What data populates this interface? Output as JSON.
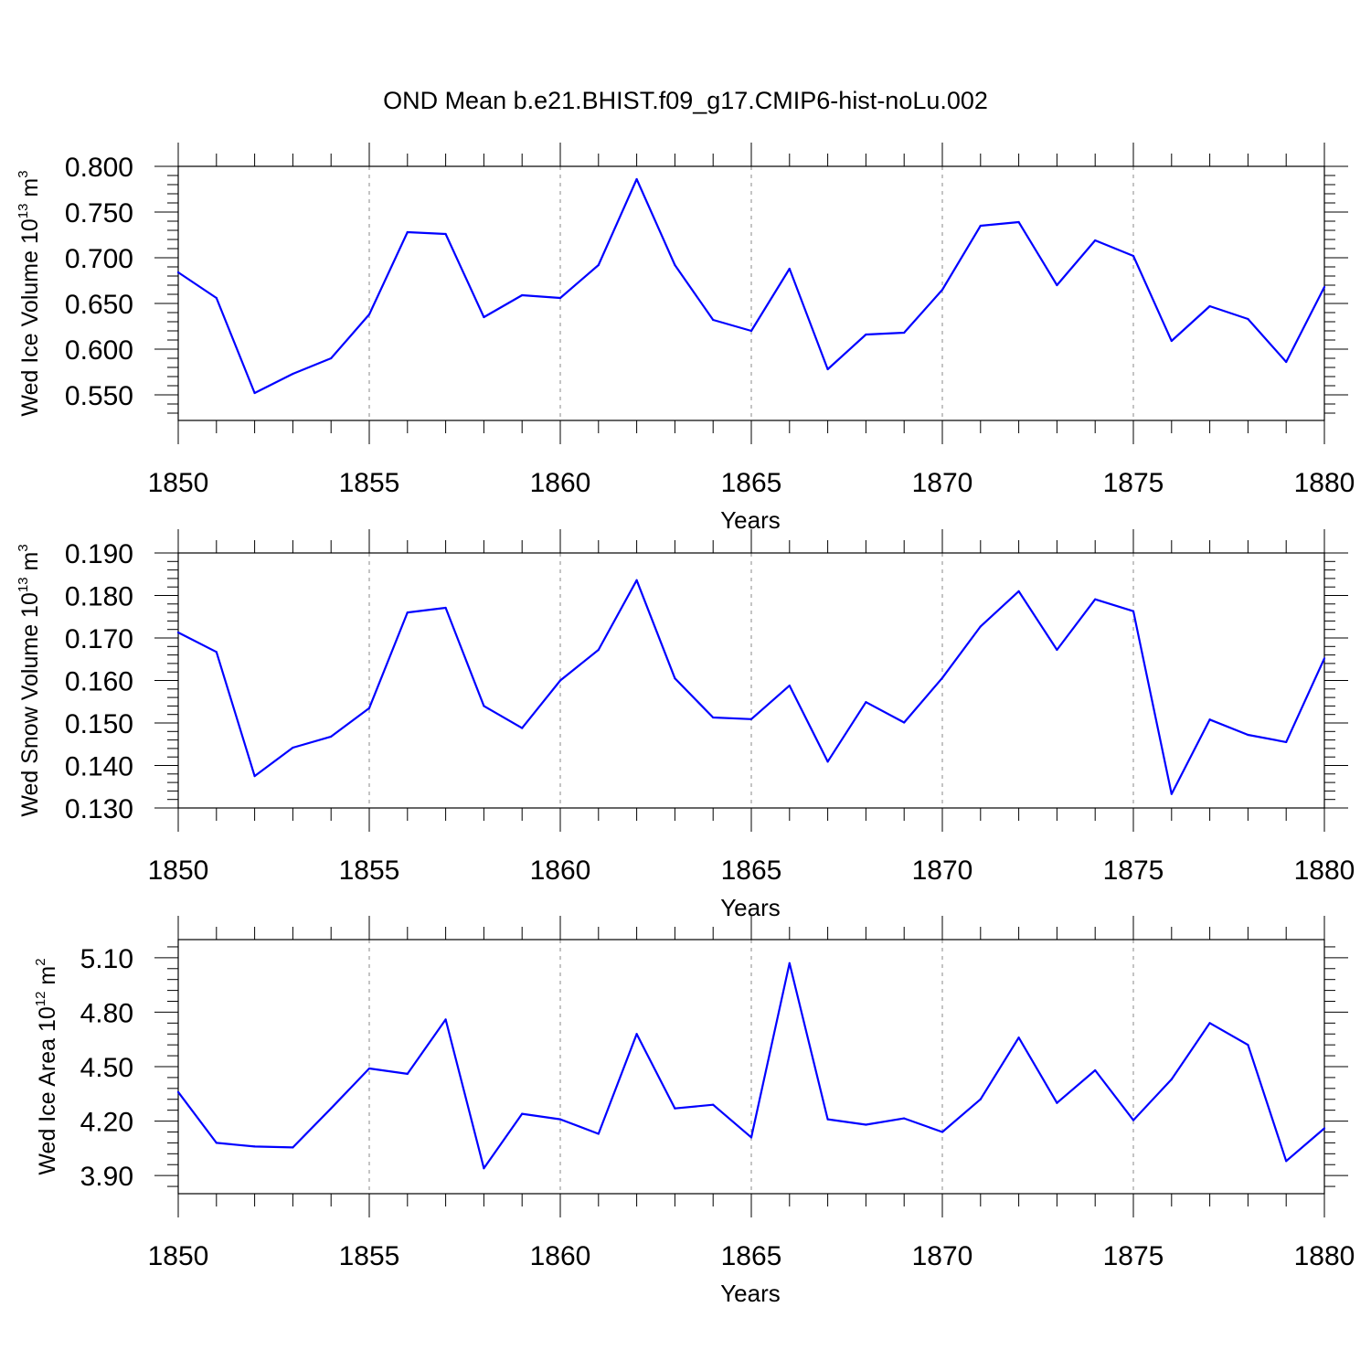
{
  "figure": {
    "title": "OND Mean b.e21.BHIST.f09_g17.CMIP6-hist-noLu.002"
  },
  "colors": {
    "line": "#0000ff",
    "grid": "#888888",
    "axis": "#000000"
  },
  "chart_data": [
    {
      "type": "line",
      "title": "OND Mean b.e21.BHIST.f09_g17.CMIP6-hist-noLu.002",
      "xlabel": "Years",
      "ylabel": "Wed Ice Volume 10^13 m^3",
      "ylabel_parts": {
        "text": "Wed Ice Volume 10",
        "exp": "13",
        "unit": " m",
        "unit_exp": "3"
      },
      "xlim": [
        1850,
        1880
      ],
      "ylim": [
        0.522,
        0.8
      ],
      "xticks": [
        1850,
        1855,
        1860,
        1865,
        1870,
        1875,
        1880
      ],
      "xtick_labels": [
        "1850",
        "1855",
        "1860",
        "1865",
        "1870",
        "1875",
        "1880"
      ],
      "yticks": [
        0.55,
        0.6,
        0.65,
        0.7,
        0.75,
        0.8
      ],
      "ytick_labels": [
        "0.550",
        "0.600",
        "0.650",
        "0.700",
        "0.750",
        "0.800"
      ],
      "grid": "x-dashed",
      "series": [
        {
          "name": "Wed Ice Volume",
          "x": [
            1850,
            1851,
            1852,
            1853,
            1854,
            1855,
            1856,
            1857,
            1858,
            1859,
            1860,
            1861,
            1862,
            1863,
            1864,
            1865,
            1866,
            1867,
            1868,
            1869,
            1870,
            1871,
            1872,
            1873,
            1874,
            1875,
            1876,
            1877,
            1878,
            1879,
            1880
          ],
          "values": [
            0.684,
            0.656,
            0.552,
            0.573,
            0.59,
            0.638,
            0.728,
            0.726,
            0.635,
            0.659,
            0.656,
            0.692,
            0.786,
            0.692,
            0.632,
            0.62,
            0.688,
            0.578,
            0.616,
            0.618,
            0.665,
            0.735,
            0.739,
            0.67,
            0.719,
            0.702,
            0.609,
            0.647,
            0.633,
            0.586,
            0.668
          ]
        }
      ]
    },
    {
      "type": "line",
      "xlabel": "Years",
      "ylabel": "Wed Snow Volume 10^13 m^3",
      "ylabel_parts": {
        "text": "Wed Snow Volume 10",
        "exp": "13",
        "unit": " m",
        "unit_exp": "3"
      },
      "xlim": [
        1850,
        1880
      ],
      "ylim": [
        0.13,
        0.19
      ],
      "xticks": [
        1850,
        1855,
        1860,
        1865,
        1870,
        1875,
        1880
      ],
      "xtick_labels": [
        "1850",
        "1855",
        "1860",
        "1865",
        "1870",
        "1875",
        "1880"
      ],
      "yticks": [
        0.13,
        0.14,
        0.15,
        0.16,
        0.17,
        0.18,
        0.19
      ],
      "ytick_labels": [
        "0.130",
        "0.140",
        "0.150",
        "0.160",
        "0.170",
        "0.180",
        "0.190"
      ],
      "grid": "x-dashed",
      "series": [
        {
          "name": "Wed Snow Volume",
          "x": [
            1850,
            1851,
            1852,
            1853,
            1854,
            1855,
            1856,
            1857,
            1858,
            1859,
            1860,
            1861,
            1862,
            1863,
            1864,
            1865,
            1866,
            1867,
            1868,
            1869,
            1870,
            1871,
            1872,
            1873,
            1874,
            1875,
            1876,
            1877,
            1878,
            1879,
            1880
          ],
          "values": [
            0.1713,
            0.1667,
            0.1375,
            0.1442,
            0.1468,
            0.1535,
            0.176,
            0.1771,
            0.154,
            0.1488,
            0.16,
            0.1672,
            0.1836,
            0.1605,
            0.1513,
            0.1509,
            0.1588,
            0.1409,
            0.1549,
            0.1501,
            0.1606,
            0.1727,
            0.181,
            0.1672,
            0.1791,
            0.1763,
            0.1333,
            0.1508,
            0.1472,
            0.1455,
            0.1652
          ]
        }
      ]
    },
    {
      "type": "line",
      "xlabel": "Years",
      "ylabel": "Wed Ice Area 10^12 m^2",
      "ylabel_parts": {
        "text": "Wed Ice Area 10",
        "exp": "12",
        "unit": " m",
        "unit_exp": "2"
      },
      "xlim": [
        1850,
        1880
      ],
      "ylim": [
        3.8,
        5.2
      ],
      "xticks": [
        1850,
        1855,
        1860,
        1865,
        1870,
        1875,
        1880
      ],
      "xtick_labels": [
        "1850",
        "1855",
        "1860",
        "1865",
        "1870",
        "1875",
        "1880"
      ],
      "yticks": [
        3.9,
        4.2,
        4.5,
        4.8,
        5.1
      ],
      "ytick_labels": [
        "3.90",
        "4.20",
        "4.50",
        "4.80",
        "5.10"
      ],
      "grid": "x-dashed",
      "series": [
        {
          "name": "Wed Ice Area",
          "x": [
            1850,
            1851,
            1852,
            1853,
            1854,
            1855,
            1856,
            1857,
            1858,
            1859,
            1860,
            1861,
            1862,
            1863,
            1864,
            1865,
            1866,
            1867,
            1868,
            1869,
            1870,
            1871,
            1872,
            1873,
            1874,
            1875,
            1876,
            1877,
            1878,
            1879,
            1880
          ],
          "values": [
            4.36,
            4.08,
            4.06,
            4.055,
            4.27,
            4.49,
            4.46,
            4.76,
            3.94,
            4.24,
            4.21,
            4.13,
            4.68,
            4.27,
            4.29,
            4.11,
            5.07,
            4.21,
            4.18,
            4.215,
            4.14,
            4.32,
            4.66,
            4.3,
            4.48,
            4.205,
            4.43,
            4.74,
            4.62,
            3.98,
            4.16
          ]
        }
      ]
    }
  ]
}
